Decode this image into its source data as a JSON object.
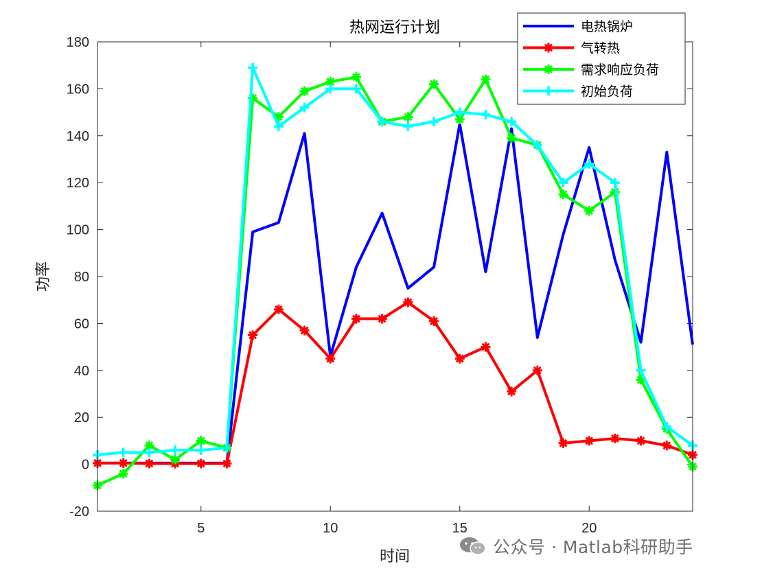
{
  "chart_data": {
    "type": "line",
    "title": "热网运行计划",
    "xlabel": "时间",
    "ylabel": "功率",
    "xlim": [
      1,
      24
    ],
    "ylim": [
      -20,
      180
    ],
    "xticks": [
      5,
      10,
      15,
      20
    ],
    "yticks": [
      -20,
      0,
      20,
      40,
      60,
      80,
      100,
      120,
      140,
      160,
      180
    ],
    "grid": false,
    "legend_location": "top-right",
    "x": [
      1,
      2,
      3,
      4,
      5,
      6,
      7,
      8,
      9,
      10,
      11,
      12,
      13,
      14,
      15,
      16,
      17,
      18,
      19,
      20,
      21,
      22,
      23,
      24
    ],
    "series": [
      {
        "name": "电热锅炉",
        "color": "#0000ff",
        "marker": "none",
        "values": [
          0.5,
          0.5,
          0.5,
          0.5,
          0.5,
          0.5,
          99,
          103,
          141,
          46,
          84,
          107,
          75,
          84,
          145,
          82,
          143,
          54,
          98,
          135,
          87,
          52,
          133,
          51
        ]
      },
      {
        "name": "气转热",
        "color": "#ff0000",
        "marker": "asterisk",
        "values": [
          0.5,
          0.5,
          0.3,
          0.3,
          0.3,
          0.3,
          55,
          66,
          57,
          45,
          62,
          62,
          69,
          61,
          45,
          50,
          31,
          40,
          9,
          10,
          11,
          10,
          8,
          4
        ]
      },
      {
        "name": "需求响应负荷",
        "color": "#00ff00",
        "marker": "asterisk",
        "values": [
          -9,
          -4,
          8,
          2,
          10,
          7,
          156,
          148,
          159,
          163,
          165,
          146,
          148,
          162,
          147,
          164,
          139,
          136,
          115,
          108,
          116,
          36,
          15,
          -1
        ]
      },
      {
        "name": "初始负荷",
        "color": "#00ffff",
        "marker": "plus",
        "values": [
          4,
          5,
          5,
          6,
          6,
          7,
          169,
          144,
          152,
          160,
          160,
          146,
          144,
          146,
          150,
          149,
          146,
          136,
          120,
          128,
          120,
          40,
          16,
          8
        ]
      }
    ]
  },
  "watermark": {
    "text": "公众号 · Matlab科研助手",
    "icon": "wechat-icon"
  }
}
